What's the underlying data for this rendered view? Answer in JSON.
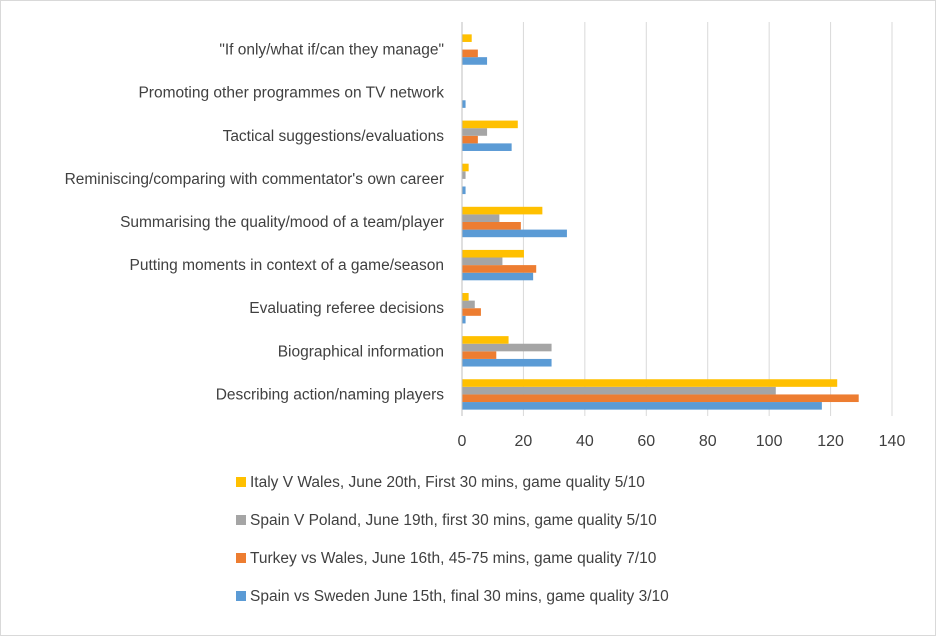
{
  "chart_data": {
    "type": "bar",
    "orientation": "horizontal",
    "categories": [
      "Describing action/naming players",
      "Biographical information",
      "Evaluating referee decisions",
      "Putting moments in context of a game/season",
      "Summarising the quality/mood of a team/player",
      "Reminiscing/comparing with commentator's own career",
      "Tactical suggestions/evaluations",
      "Promoting other programmes on TV network",
      "\"If only/what if/can they manage\""
    ],
    "series": [
      {
        "name": "Spain vs Sweden June 15th, final 30 mins, game quality 3/10",
        "color": "#5b9bd5",
        "values": [
          117,
          29,
          1,
          23,
          34,
          1,
          16,
          1,
          8
        ]
      },
      {
        "name": "Turkey vs Wales, June 16th, 45-75 mins, game quality 7/10",
        "color": "#ed7d31",
        "values": [
          129,
          11,
          6,
          24,
          19,
          0,
          5,
          0,
          5
        ]
      },
      {
        "name": "Spain V Poland, June 19th, first 30 mins, game quality 5/10",
        "color": "#a5a5a5",
        "values": [
          102,
          29,
          4,
          13,
          12,
          1,
          8,
          0,
          0
        ]
      },
      {
        "name": "Italy V Wales, June 20th, First 30 mins, game quality 5/10",
        "color": "#ffc000",
        "values": [
          122,
          15,
          2,
          20,
          26,
          2,
          18,
          0,
          3
        ]
      }
    ],
    "xlim": [
      0,
      140
    ],
    "xticks": [
      0,
      20,
      40,
      60,
      80,
      100,
      120,
      140
    ],
    "grid": true,
    "legend_position": "bottom",
    "title": "",
    "xlabel": "",
    "ylabel": ""
  }
}
